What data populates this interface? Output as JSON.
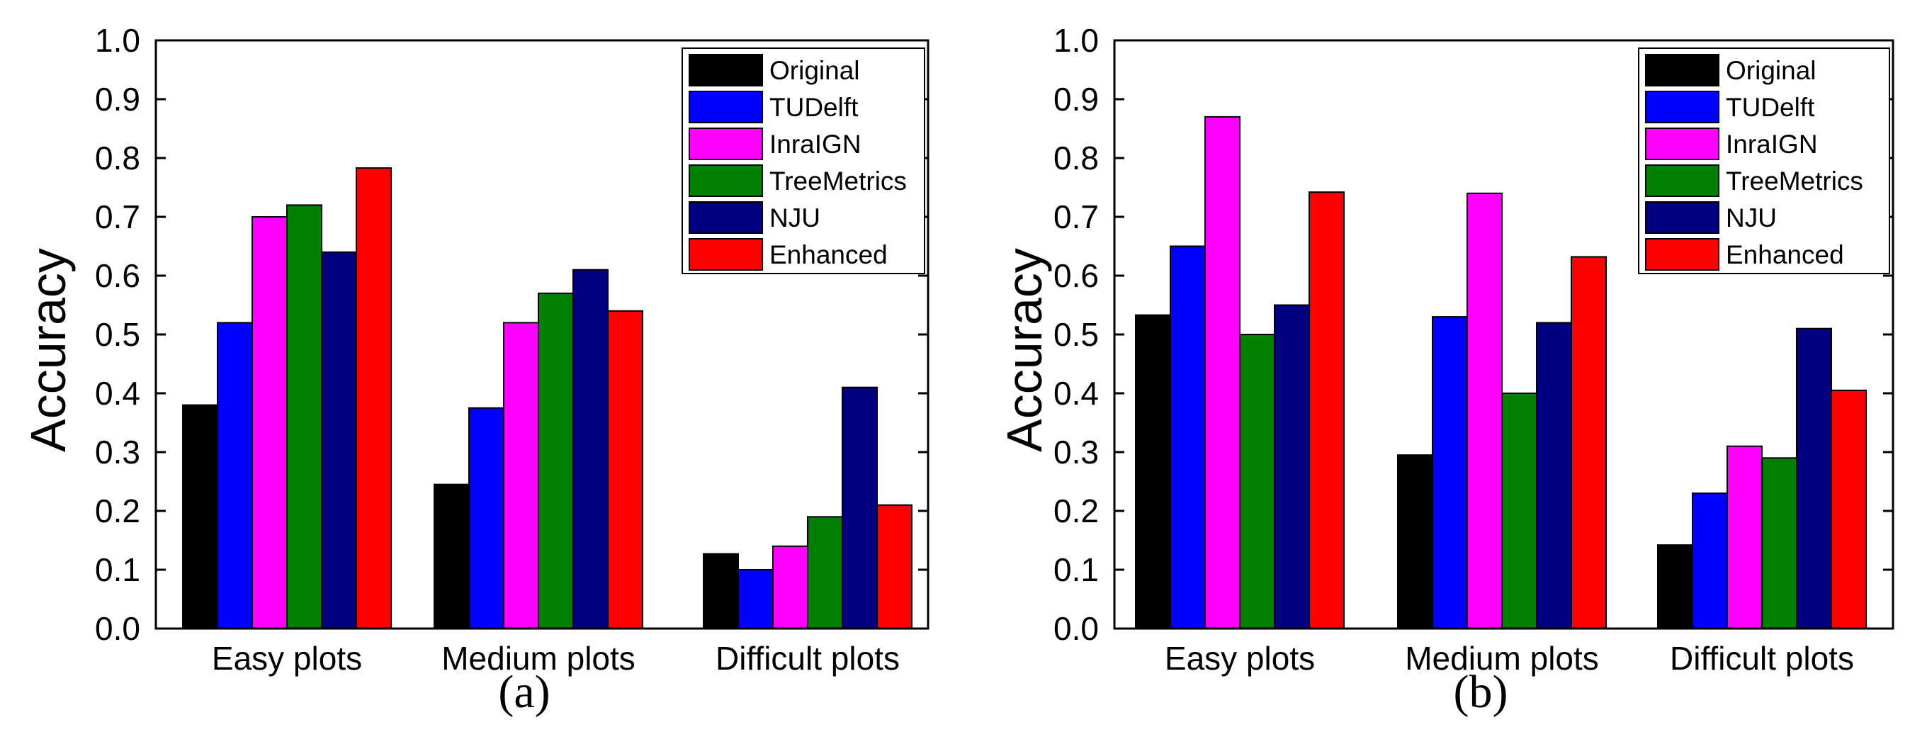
{
  "chart_data": [
    {
      "type": "bar",
      "caption": "(a)",
      "ylabel": "Accuracy",
      "xlabel": "",
      "ylim": [
        0,
        1
      ],
      "yticks": [
        "0.0",
        "0.1",
        "0.2",
        "0.3",
        "0.4",
        "0.5",
        "0.6",
        "0.7",
        "0.8",
        "0.9",
        "1.0"
      ],
      "categories": [
        "Easy plots",
        "Medium plots",
        "Difficult plots"
      ],
      "legend_position": "top-right",
      "series": [
        {
          "name": "Original",
          "color": "#000000",
          "values": [
            0.38,
            0.245,
            0.127
          ]
        },
        {
          "name": "TUDelft",
          "color": "#0000ff",
          "values": [
            0.52,
            0.375,
            0.1
          ]
        },
        {
          "name": "InraIGN",
          "color": "#ff00ff",
          "values": [
            0.7,
            0.52,
            0.14
          ]
        },
        {
          "name": "TreeMetrics",
          "color": "#008000",
          "values": [
            0.72,
            0.57,
            0.19
          ]
        },
        {
          "name": "NJU",
          "color": "#000080",
          "values": [
            0.64,
            0.61,
            0.41
          ]
        },
        {
          "name": "Enhanced",
          "color": "#ff0000",
          "values": [
            0.783,
            0.54,
            0.21
          ]
        }
      ]
    },
    {
      "type": "bar",
      "caption": "(b)",
      "ylabel": "Accuracy",
      "xlabel": "",
      "ylim": [
        0,
        1
      ],
      "yticks": [
        "0.0",
        "0.1",
        "0.2",
        "0.3",
        "0.4",
        "0.5",
        "0.6",
        "0.7",
        "0.8",
        "0.9",
        "1.0"
      ],
      "categories": [
        "Easy plots",
        "Medium plots",
        "Difficult plots"
      ],
      "legend_position": "top-right",
      "series": [
        {
          "name": "Original",
          "color": "#000000",
          "values": [
            0.533,
            0.295,
            0.142
          ]
        },
        {
          "name": "TUDelft",
          "color": "#0000ff",
          "values": [
            0.65,
            0.53,
            0.23
          ]
        },
        {
          "name": "InraIGN",
          "color": "#ff00ff",
          "values": [
            0.87,
            0.74,
            0.31
          ]
        },
        {
          "name": "TreeMetrics",
          "color": "#008000",
          "values": [
            0.5,
            0.4,
            0.29
          ]
        },
        {
          "name": "NJU",
          "color": "#000080",
          "values": [
            0.55,
            0.52,
            0.51
          ]
        },
        {
          "name": "Enhanced",
          "color": "#ff0000",
          "values": [
            0.742,
            0.632,
            0.405
          ]
        }
      ]
    }
  ]
}
